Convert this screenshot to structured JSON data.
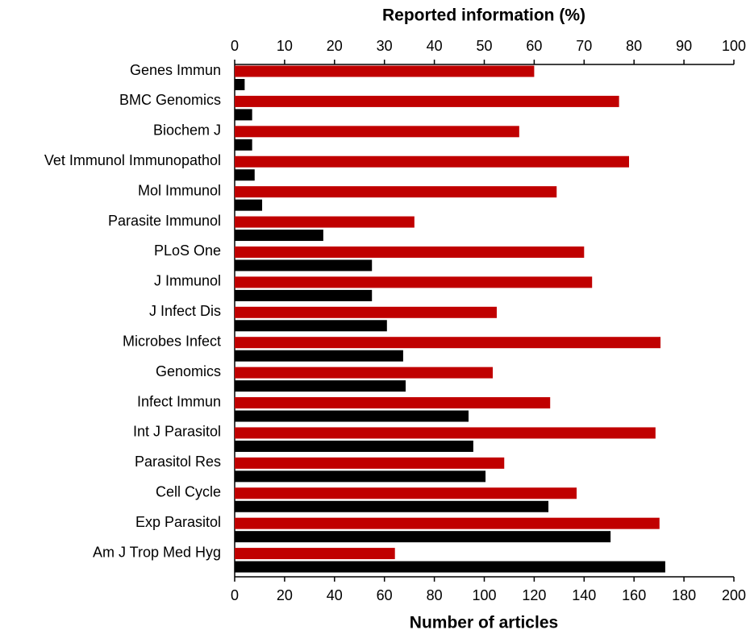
{
  "chart_data": {
    "type": "bar",
    "orientation": "horizontal",
    "x_label": "Number of articles",
    "x2_label": "Reported information (%)",
    "categories": [
      "Genes Immun",
      "BMC Genomics",
      "Biochem J",
      "Vet Immunol Immunopathol",
      "Mol Immunol",
      "Parasite Immunol",
      "PLoS One",
      "J Immunol",
      "J Infect Dis",
      "Microbes Infect",
      "Genomics",
      "Infect Immun",
      "Int J Parasitol",
      "Parasitol Res",
      "Cell Cycle",
      "Exp Parasitol",
      "Am J Trop Med Hyg"
    ],
    "series": [
      {
        "color": "#c00000",
        "axis": "x2",
        "values": [
          60,
          77,
          57,
          79,
          64.5,
          36,
          70,
          71.6,
          52.5,
          85.3,
          51.7,
          63.2,
          84.3,
          54,
          68.5,
          85.1,
          32.1
        ]
      },
      {
        "color": "#000000",
        "axis": "x",
        "values": [
          4,
          7,
          7,
          8,
          11,
          35.5,
          55,
          55,
          61,
          67.5,
          68.5,
          93.7,
          95.6,
          100.5,
          125.7,
          150.6,
          172.5
        ]
      }
    ],
    "xlim": [
      0,
      200
    ],
    "xticks": [
      0,
      20,
      40,
      60,
      80,
      100,
      120,
      140,
      160,
      180,
      200
    ],
    "x2lim": [
      0,
      100
    ],
    "x2ticks": [
      0,
      10,
      20,
      30,
      40,
      50,
      60,
      70,
      80,
      90,
      100
    ]
  }
}
